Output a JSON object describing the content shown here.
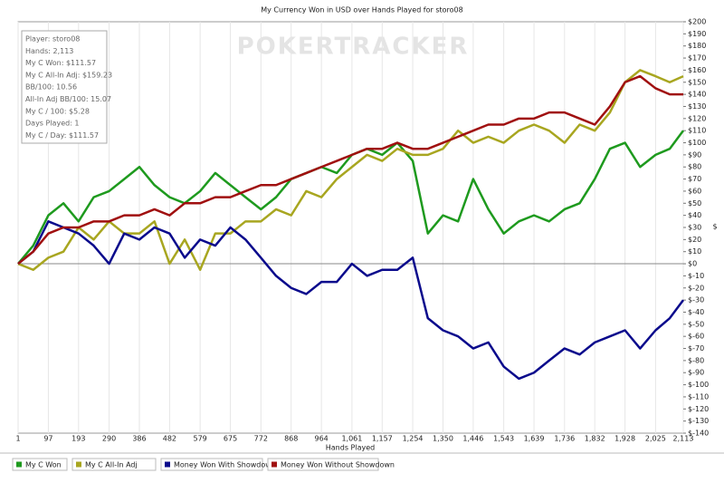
{
  "chart_data": {
    "type": "line",
    "title": "My Currency Won in USD over Hands Played for storo08",
    "xlabel": "Hands Played",
    "ylabel": "$",
    "watermark": "POKERTRACKER",
    "annotations": [
      "Player: storo08",
      "Hands: 2,113",
      "My C Won: $111.57",
      "My C All-In Adj: $159.23",
      "BB/100: 10.56",
      "All-In Adj BB/100: 15.07",
      "My C / 100: $5.28",
      "Days Played: 1",
      "My C / Day: $111.57"
    ],
    "x": [
      1,
      49,
      97,
      145,
      193,
      241,
      290,
      338,
      386,
      434,
      482,
      530,
      579,
      627,
      675,
      723,
      772,
      820,
      868,
      916,
      964,
      1013,
      1061,
      1109,
      1157,
      1205,
      1254,
      1302,
      1350,
      1398,
      1446,
      1494,
      1543,
      1591,
      1639,
      1687,
      1736,
      1784,
      1832,
      1880,
      1928,
      1976,
      2025,
      2070,
      2113
    ],
    "series": [
      {
        "name": "My C Won",
        "color": "#1e9a1e",
        "values": [
          0,
          15,
          40,
          50,
          35,
          55,
          60,
          70,
          80,
          65,
          55,
          50,
          60,
          75,
          65,
          55,
          45,
          55,
          70,
          75,
          80,
          75,
          90,
          95,
          90,
          100,
          85,
          25,
          40,
          35,
          70,
          45,
          25,
          35,
          40,
          35,
          45,
          50,
          70,
          95,
          100,
          80,
          90,
          95,
          110
        ]
      },
      {
        "name": "My C All-In Adj",
        "color": "#a8a620",
        "values": [
          0,
          -5,
          5,
          10,
          30,
          20,
          35,
          25,
          25,
          35,
          0,
          20,
          -5,
          25,
          25,
          35,
          35,
          45,
          40,
          60,
          55,
          70,
          80,
          90,
          85,
          95,
          90,
          90,
          95,
          110,
          100,
          105,
          100,
          110,
          115,
          110,
          100,
          115,
          110,
          125,
          150,
          160,
          155,
          150,
          155
        ]
      },
      {
        "name": "Money Won With Showdown",
        "color": "#0a0a8c",
        "values": [
          0,
          10,
          35,
          30,
          25,
          15,
          0,
          25,
          20,
          30,
          25,
          5,
          20,
          15,
          30,
          20,
          5,
          -10,
          -20,
          -25,
          -15,
          -15,
          0,
          -10,
          -5,
          -5,
          5,
          -45,
          -55,
          -60,
          -70,
          -65,
          -85,
          -95,
          -90,
          -80,
          -70,
          -75,
          -65,
          -60,
          -55,
          -70,
          -55,
          -45,
          -30
        ]
      },
      {
        "name": "Money Won Without Showdown",
        "color": "#a01010",
        "values": [
          0,
          10,
          25,
          30,
          30,
          35,
          35,
          40,
          40,
          45,
          40,
          50,
          50,
          55,
          55,
          60,
          65,
          65,
          70,
          75,
          80,
          85,
          90,
          95,
          95,
          100,
          95,
          95,
          100,
          105,
          110,
          115,
          115,
          120,
          120,
          125,
          125,
          120,
          115,
          130,
          150,
          155,
          145,
          140,
          140
        ]
      }
    ],
    "xlim": [
      1,
      2113
    ],
    "xticks": [
      1,
      97,
      193,
      290,
      386,
      482,
      579,
      675,
      772,
      868,
      964,
      {
        "value": 1061,
        "label": "1,061"
      },
      {
        "value": 1157,
        "label": "1,157"
      },
      {
        "value": 1254,
        "label": "1,254"
      },
      {
        "value": 1350,
        "label": "1,350"
      },
      {
        "value": 1446,
        "label": "1,446"
      },
      {
        "value": 1543,
        "label": "1,543"
      },
      {
        "value": 1639,
        "label": "1,639"
      },
      {
        "value": 1736,
        "label": "1,736"
      },
      {
        "value": 1832,
        "label": "1,832"
      },
      {
        "value": 1928,
        "label": "1,928"
      },
      {
        "value": 2025,
        "label": "2,025"
      },
      {
        "value": 2113,
        "label": "2,113"
      }
    ],
    "ylim": [
      -140,
      200
    ],
    "yticks": [
      {
        "value": 200,
        "label": "$200"
      },
      {
        "value": 190,
        "label": "$190"
      },
      {
        "value": 180,
        "label": "$180"
      },
      {
        "value": 170,
        "label": "$170"
      },
      {
        "value": 160,
        "label": "$160"
      },
      {
        "value": 150,
        "label": "$150"
      },
      {
        "value": 140,
        "label": "$140"
      },
      {
        "value": 130,
        "label": "$130"
      },
      {
        "value": 120,
        "label": "$120"
      },
      {
        "value": 110,
        "label": "$110"
      },
      {
        "value": 100,
        "label": "$100"
      },
      {
        "value": 90,
        "label": "$90"
      },
      {
        "value": 80,
        "label": "$80"
      },
      {
        "value": 70,
        "label": "$70"
      },
      {
        "value": 60,
        "label": "$60"
      },
      {
        "value": 50,
        "label": "$50"
      },
      {
        "value": 40,
        "label": "$40"
      },
      {
        "value": 30,
        "label": "$30"
      },
      {
        "value": 20,
        "label": "$20"
      },
      {
        "value": 10,
        "label": "$10"
      },
      {
        "value": 0,
        "label": "$0"
      },
      {
        "value": -10,
        "label": "$-10"
      },
      {
        "value": -20,
        "label": "$-20"
      },
      {
        "value": -30,
        "label": "$-30"
      },
      {
        "value": -40,
        "label": "$-40"
      },
      {
        "value": -50,
        "label": "$-50"
      },
      {
        "value": -60,
        "label": "$-60"
      },
      {
        "value": -70,
        "label": "$-70"
      },
      {
        "value": -80,
        "label": "$-80"
      },
      {
        "value": -90,
        "label": "$-90"
      },
      {
        "value": -100,
        "label": "$-100"
      },
      {
        "value": -110,
        "label": "$-110"
      },
      {
        "value": -120,
        "label": "$-120"
      },
      {
        "value": -130,
        "label": "$-130"
      },
      {
        "value": -140,
        "label": "$-140"
      }
    ],
    "grid": true
  }
}
